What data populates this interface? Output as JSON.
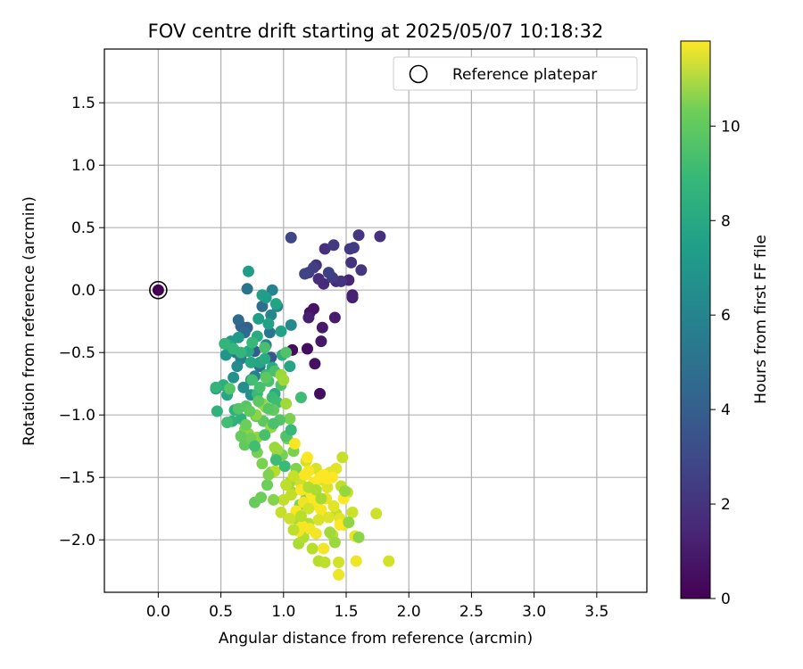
{
  "chart_data": {
    "type": "scatter",
    "title": "FOV centre drift starting at 2025/05/07 10:18:32",
    "xlabel": "Angular distance from reference (arcmin)",
    "ylabel": "Rotation from reference (arcmin)",
    "xlim": [
      -0.43,
      3.9
    ],
    "ylim": [
      -2.42,
      1.93
    ],
    "xticks": [
      0.0,
      0.5,
      1.0,
      1.5,
      2.0,
      2.5,
      3.0,
      3.5
    ],
    "xtick_labels": [
      "0.0",
      "0.5",
      "1.0",
      "1.5",
      "2.0",
      "2.5",
      "3.0",
      "3.5"
    ],
    "yticks": [
      -2.0,
      -1.5,
      -1.0,
      -0.5,
      0.0,
      0.5,
      1.0,
      1.5
    ],
    "ytick_labels": [
      "−2.0",
      "−1.5",
      "−1.0",
      "−0.5",
      "0.0",
      "0.5",
      "1.0",
      "1.5"
    ],
    "grid": true,
    "legend": {
      "position": "top-right",
      "entries": [
        {
          "label": "Reference platepar",
          "marker": "open-circle",
          "color": "#000000"
        }
      ]
    },
    "colorbar": {
      "label": "Hours from first FF file",
      "colormap": "viridis",
      "range": [
        0,
        11.8
      ],
      "ticks": [
        0,
        2,
        4,
        6,
        8,
        10
      ],
      "tick_labels": [
        "0",
        "2",
        "4",
        "6",
        "8",
        "10"
      ]
    },
    "reference_point": {
      "x": 0.0,
      "y": 0.0,
      "hours": 0.0
    },
    "series": [
      {
        "name": "Reference platepar",
        "points": [
          [
            0.0,
            0.0,
            0.0
          ]
        ]
      },
      {
        "columns": [
          "x",
          "y",
          "hours"
        ],
        "points": [
          [
            1.07,
            -0.48,
            0.3
          ],
          [
            1.19,
            -0.47,
            0.4
          ],
          [
            1.21,
            -0.18,
            0.5
          ],
          [
            1.24,
            -0.15,
            0.6
          ],
          [
            1.25,
            -0.59,
            0.5
          ],
          [
            1.29,
            -0.83,
            0.4
          ],
          [
            1.3,
            -0.41,
            0.7
          ],
          [
            1.31,
            -0.3,
            0.8
          ],
          [
            1.41,
            -0.22,
            0.9
          ],
          [
            1.2,
            -0.22,
            1.0
          ],
          [
            1.55,
            -0.04,
            1.0
          ],
          [
            1.55,
            -0.06,
            1.1
          ],
          [
            1.52,
            0.08,
            1.2
          ],
          [
            1.42,
            0.07,
            1.3
          ],
          [
            1.32,
            0.05,
            1.4
          ],
          [
            1.28,
            0.09,
            1.5
          ],
          [
            1.33,
            0.33,
            1.6
          ],
          [
            1.26,
            0.2,
            1.7
          ],
          [
            1.46,
            0.07,
            1.8
          ],
          [
            1.54,
            0.22,
            1.8
          ],
          [
            1.62,
            0.16,
            1.9
          ],
          [
            1.53,
            0.33,
            2.0
          ],
          [
            1.4,
            0.36,
            2.0
          ],
          [
            1.39,
            0.1,
            2.1
          ],
          [
            1.24,
            0.18,
            2.2
          ],
          [
            1.2,
            0.14,
            2.3
          ],
          [
            1.06,
            0.42,
            2.5
          ],
          [
            1.6,
            0.44,
            1.9
          ],
          [
            1.77,
            0.43,
            1.6
          ],
          [
            1.56,
            0.34,
            2.1
          ],
          [
            1.36,
            0.14,
            2.3
          ],
          [
            1.17,
            0.13,
            2.4
          ],
          [
            0.9,
            -0.54,
            3.2
          ],
          [
            0.77,
            -0.49,
            3.4
          ],
          [
            0.71,
            -0.3,
            3.6
          ],
          [
            0.66,
            -0.29,
            3.7
          ],
          [
            0.64,
            -0.24,
            4.0
          ],
          [
            0.69,
            -0.34,
            4.1
          ],
          [
            0.83,
            -0.13,
            4.3
          ],
          [
            0.71,
            0.01,
            4.5
          ],
          [
            0.81,
            -0.61,
            4.4
          ],
          [
            0.89,
            -0.34,
            4.6
          ],
          [
            0.58,
            -0.45,
            4.8
          ],
          [
            0.62,
            -0.5,
            4.9
          ],
          [
            0.66,
            -0.55,
            5.0
          ],
          [
            0.77,
            -0.69,
            5.1
          ],
          [
            0.86,
            -0.44,
            5.2
          ],
          [
            0.91,
            0.0,
            5.3
          ],
          [
            0.95,
            -0.13,
            5.4
          ],
          [
            0.9,
            -0.2,
            5.5
          ],
          [
            1.06,
            -0.28,
            5.6
          ],
          [
            0.63,
            -0.61,
            5.7
          ],
          [
            0.68,
            -0.78,
            5.8
          ],
          [
            0.74,
            -0.72,
            5.9
          ],
          [
            0.74,
            -0.84,
            5.9
          ],
          [
            0.6,
            -0.7,
            6.0
          ],
          [
            0.46,
            -0.79,
            6.1
          ],
          [
            0.54,
            -0.52,
            6.2
          ],
          [
            0.58,
            -0.41,
            6.3
          ],
          [
            0.64,
            -0.38,
            6.4
          ],
          [
            0.72,
            0.15,
            6.5
          ],
          [
            0.86,
            -0.06,
            6.5
          ],
          [
            0.83,
            -0.04,
            6.6
          ],
          [
            0.8,
            -0.23,
            6.6
          ],
          [
            0.88,
            -0.27,
            6.7
          ],
          [
            0.94,
            -0.11,
            6.8
          ],
          [
            0.98,
            -0.33,
            6.8
          ],
          [
            1.05,
            -0.61,
            6.9
          ],
          [
            0.81,
            -0.58,
            6.9
          ],
          [
            0.55,
            -0.84,
            7.0
          ],
          [
            0.56,
            -0.44,
            7.0
          ],
          [
            0.72,
            -0.49,
            7.1
          ],
          [
            0.74,
            -0.58,
            7.1
          ],
          [
            0.79,
            -0.37,
            7.2
          ],
          [
            0.85,
            -0.55,
            7.2
          ],
          [
            0.91,
            -0.62,
            7.3
          ],
          [
            0.93,
            -0.83,
            7.3
          ],
          [
            0.99,
            -0.52,
            7.4
          ],
          [
            0.52,
            -0.76,
            7.4
          ],
          [
            0.61,
            -0.96,
            7.5
          ],
          [
            0.66,
            -1.03,
            7.5
          ],
          [
            0.59,
            -1.05,
            7.6
          ],
          [
            0.47,
            -0.97,
            7.6
          ],
          [
            0.46,
            -0.78,
            7.7
          ],
          [
            0.53,
            -0.43,
            7.7
          ],
          [
            0.6,
            -0.47,
            7.8
          ],
          [
            0.66,
            -0.5,
            7.8
          ],
          [
            0.75,
            -0.42,
            7.9
          ],
          [
            0.79,
            -0.83,
            7.9
          ],
          [
            0.86,
            -0.68,
            8.0
          ],
          [
            0.91,
            -0.86,
            8.0
          ],
          [
            0.95,
            -0.9,
            8.1
          ],
          [
            1.14,
            -0.86,
            8.1
          ],
          [
            0.55,
            -1.06,
            8.2
          ],
          [
            0.75,
            -0.72,
            8.2
          ],
          [
            0.81,
            -0.78,
            8.3
          ],
          [
            0.85,
            -0.46,
            8.3
          ],
          [
            0.88,
            -0.73,
            8.4
          ],
          [
            0.93,
            -0.65,
            8.4
          ],
          [
            0.98,
            -0.76,
            8.5
          ],
          [
            1.02,
            -0.5,
            8.5
          ],
          [
            0.57,
            -0.79,
            8.6
          ],
          [
            0.64,
            -0.95,
            8.6
          ],
          [
            0.7,
            -0.93,
            8.7
          ],
          [
            0.78,
            -1.01,
            8.7
          ],
          [
            0.84,
            -1.05,
            8.8
          ],
          [
            0.86,
            -0.7,
            8.8
          ],
          [
            0.92,
            -0.96,
            8.9
          ],
          [
            0.69,
            -1.24,
            8.9
          ],
          [
            0.76,
            -1.21,
            9.0
          ],
          [
            0.77,
            -1.7,
            9.0
          ],
          [
            0.82,
            -1.66,
            9.1
          ],
          [
            0.87,
            -1.56,
            9.1
          ],
          [
            0.9,
            -1.46,
            9.2
          ],
          [
            0.95,
            -1.33,
            9.2
          ],
          [
            0.99,
            -1.32,
            9.3
          ],
          [
            1.03,
            -1.19,
            9.3
          ],
          [
            1.05,
            -1.03,
            9.4
          ],
          [
            1.08,
            -1.29,
            9.4
          ],
          [
            1.1,
            -1.43,
            9.5
          ],
          [
            1.13,
            -1.72,
            9.5
          ],
          [
            1.18,
            -1.67,
            9.6
          ],
          [
            0.69,
            -1.12,
            9.6
          ],
          [
            0.72,
            -1.15,
            9.7
          ],
          [
            0.78,
            -1.0,
            9.7
          ],
          [
            0.79,
            -1.18,
            9.8
          ],
          [
            0.83,
            -0.91,
            9.8
          ],
          [
            0.86,
            -0.94,
            9.9
          ],
          [
            0.9,
            -1.1,
            9.9
          ],
          [
            0.93,
            -1.26,
            10.0
          ],
          [
            0.95,
            -1.28,
            10.0
          ],
          [
            0.98,
            -0.68,
            10.0
          ],
          [
            1.0,
            -0.72,
            10.1
          ],
          [
            1.02,
            -0.91,
            10.1
          ],
          [
            1.05,
            -1.54,
            10.2
          ],
          [
            1.07,
            -1.62,
            10.2
          ],
          [
            1.1,
            -1.83,
            10.3
          ],
          [
            1.12,
            -2.03,
            10.3
          ],
          [
            1.16,
            -1.98,
            10.4
          ],
          [
            1.2,
            -1.87,
            10.4
          ],
          [
            1.23,
            -2.07,
            10.5
          ],
          [
            1.28,
            -2.17,
            10.5
          ],
          [
            1.33,
            -2.18,
            10.6
          ],
          [
            1.39,
            -1.96,
            10.6
          ],
          [
            1.42,
            -1.79,
            10.7
          ],
          [
            1.46,
            -1.57,
            10.7
          ],
          [
            1.47,
            -1.34,
            10.8
          ],
          [
            1.51,
            -1.62,
            10.8
          ],
          [
            1.55,
            -1.78,
            10.9
          ],
          [
            1.74,
            -1.79,
            10.9
          ],
          [
            1.84,
            -2.17,
            11.0
          ],
          [
            1.44,
            -2.18,
            11.0
          ],
          [
            0.93,
            -1.45,
            10.5
          ],
          [
            1.02,
            -1.56,
            10.6
          ],
          [
            1.06,
            -1.64,
            10.7
          ],
          [
            1.08,
            -1.49,
            10.8
          ],
          [
            1.14,
            -1.55,
            10.9
          ],
          [
            1.18,
            -1.37,
            11.0
          ],
          [
            1.22,
            -1.57,
            11.0
          ],
          [
            1.26,
            -1.43,
            11.1
          ],
          [
            1.31,
            -1.52,
            11.1
          ],
          [
            1.35,
            -1.58,
            11.2
          ],
          [
            1.37,
            -1.46,
            11.2
          ],
          [
            1.42,
            -1.43,
            11.3
          ],
          [
            1.45,
            -1.83,
            11.3
          ],
          [
            1.48,
            -1.88,
            11.4
          ],
          [
            1.57,
            -1.97,
            11.4
          ],
          [
            1.58,
            -2.17,
            11.5
          ],
          [
            1.44,
            -2.28,
            11.5
          ],
          [
            1.32,
            -2.07,
            11.6
          ],
          [
            1.26,
            -1.95,
            11.6
          ],
          [
            1.21,
            -1.91,
            11.6
          ],
          [
            1.15,
            -1.89,
            11.7
          ],
          [
            1.1,
            -1.77,
            11.7
          ],
          [
            1.14,
            -1.6,
            11.7
          ],
          [
            1.17,
            -1.48,
            11.7
          ],
          [
            1.19,
            -1.34,
            11.8
          ],
          [
            1.22,
            -1.63,
            11.8
          ],
          [
            1.24,
            -1.54,
            11.8
          ],
          [
            1.29,
            -1.5,
            11.8
          ],
          [
            1.32,
            -1.48,
            11.8
          ],
          [
            1.35,
            -1.51,
            11.8
          ],
          [
            1.39,
            -1.5,
            11.8
          ],
          [
            1.45,
            -1.88,
            11.8
          ],
          [
            1.48,
            -1.67,
            11.8
          ],
          [
            1.23,
            -1.68,
            11.8
          ],
          [
            1.26,
            -1.72,
            11.7
          ],
          [
            1.3,
            -1.76,
            11.7
          ],
          [
            1.09,
            -1.23,
            11.7
          ],
          [
            1.2,
            -1.45,
            11.7
          ],
          [
            1.12,
            -1.93,
            11.6
          ],
          [
            1.16,
            -1.7,
            11.5
          ],
          [
            1.34,
            -1.67,
            11.4
          ],
          [
            1.4,
            -1.73,
            11.3
          ],
          [
            1.36,
            -1.82,
            11.2
          ],
          [
            1.28,
            -1.84,
            11.1
          ],
          [
            1.2,
            -1.75,
            11.0
          ],
          [
            1.05,
            -1.83,
            10.9
          ],
          [
            0.98,
            -1.78,
            10.8
          ],
          [
            1.0,
            -1.68,
            10.7
          ],
          [
            1.08,
            -1.92,
            10.6
          ],
          [
            1.14,
            -1.81,
            10.5
          ],
          [
            1.2,
            -1.58,
            10.4
          ],
          [
            1.26,
            -1.6,
            10.3
          ],
          [
            1.3,
            -1.67,
            10.2
          ],
          [
            1.37,
            -1.94,
            10.1
          ],
          [
            1.41,
            -2.02,
            10.0
          ],
          [
            1.49,
            -1.61,
            9.9
          ],
          [
            1.52,
            -1.86,
            9.8
          ],
          [
            1.6,
            -1.98,
            9.7
          ],
          [
            0.92,
            -1.68,
            9.6
          ],
          [
            0.88,
            -1.48,
            9.5
          ],
          [
            0.83,
            -1.39,
            9.4
          ],
          [
            0.79,
            -1.3,
            9.3
          ],
          [
            0.74,
            -1.19,
            9.2
          ],
          [
            0.7,
            -1.08,
            9.1
          ],
          [
            0.66,
            -1.17,
            9.0
          ],
          [
            0.73,
            -0.97,
            8.9
          ],
          [
            0.8,
            -0.89,
            8.8
          ],
          [
            0.88,
            -0.95,
            8.7
          ],
          [
            0.97,
            -1.04,
            8.6
          ],
          [
            1.02,
            -1.17,
            8.5
          ],
          [
            0.92,
            -1.07,
            8.4
          ],
          [
            0.85,
            -1.16,
            8.3
          ],
          [
            0.77,
            -1.25,
            8.2
          ],
          [
            0.94,
            -1.36,
            8.1
          ],
          [
            1.01,
            -1.41,
            8.0
          ],
          [
            1.06,
            -1.12,
            7.9
          ]
        ]
      }
    ]
  }
}
